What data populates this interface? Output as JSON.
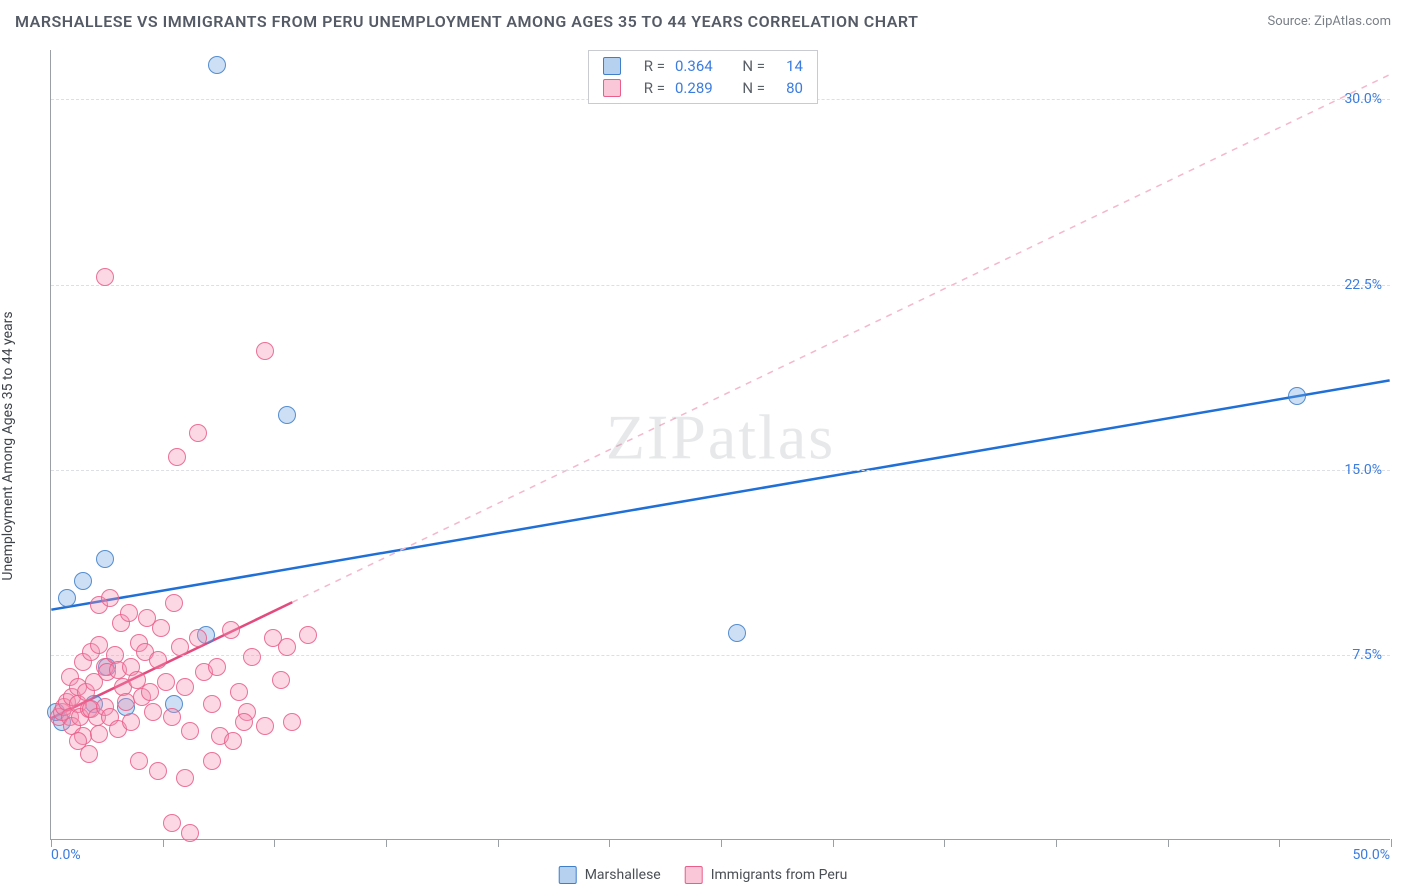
{
  "title": "MARSHALLESE VS IMMIGRANTS FROM PERU UNEMPLOYMENT AMONG AGES 35 TO 44 YEARS CORRELATION CHART",
  "source": "Source: ZipAtlas.com",
  "watermark": "ZIPatlas",
  "y_axis_label": "Unemployment Among Ages 35 to 44 years",
  "chart": {
    "type": "scatter",
    "background_color": "#ffffff",
    "grid_color": "#dcdfe4",
    "axis_color": "#9aa0a6",
    "xlim": [
      0,
      50
    ],
    "ylim": [
      0,
      32
    ],
    "x_min_label": "0.0%",
    "x_max_label": "50.0%",
    "x_tick_positions": [
      0,
      4.17,
      8.33,
      12.5,
      16.67,
      20.83,
      25,
      29.17,
      33.33,
      37.5,
      41.67,
      45.83,
      50
    ],
    "y_ticks": [
      {
        "v": 7.5,
        "label": "7.5%"
      },
      {
        "v": 15.0,
        "label": "15.0%"
      },
      {
        "v": 22.5,
        "label": "22.5%"
      },
      {
        "v": 30.0,
        "label": "30.0%"
      }
    ],
    "series": [
      {
        "name": "Marshallese",
        "color_fill": "rgba(108,163,224,0.35)",
        "color_stroke": "#3f7fc9",
        "trend_solid": {
          "x1": 0,
          "y1": 9.3,
          "x2": 50,
          "y2": 18.6,
          "stroke": "#1f6fd6",
          "width": 2.5
        },
        "trend_dash": null,
        "points": [
          [
            0.4,
            4.8
          ],
          [
            0.6,
            9.8
          ],
          [
            1.2,
            10.5
          ],
          [
            2.0,
            11.4
          ],
          [
            2.1,
            7.0
          ],
          [
            2.8,
            5.4
          ],
          [
            6.2,
            31.4
          ],
          [
            8.8,
            17.2
          ],
          [
            5.8,
            8.3
          ],
          [
            25.6,
            8.4
          ],
          [
            46.5,
            18.0
          ],
          [
            4.6,
            5.5
          ],
          [
            1.6,
            5.5
          ],
          [
            0.2,
            5.2
          ]
        ]
      },
      {
        "name": "Immigrants from Peru",
        "color_fill": "rgba(244,143,177,0.35)",
        "color_stroke": "#e95e8a",
        "trend_solid": {
          "x1": 0,
          "y1": 4.9,
          "x2": 9,
          "y2": 9.6,
          "stroke": "#e34b7e",
          "width": 2.5
        },
        "trend_dash": {
          "x1": 9,
          "y1": 9.6,
          "x2": 50,
          "y2": 31.0,
          "stroke": "#f4b7cd",
          "width": 1.5
        },
        "points": [
          [
            0.3,
            5.0
          ],
          [
            0.4,
            5.2
          ],
          [
            0.5,
            5.4
          ],
          [
            0.6,
            5.6
          ],
          [
            0.7,
            5.0
          ],
          [
            0.7,
            6.6
          ],
          [
            0.8,
            4.6
          ],
          [
            0.8,
            5.8
          ],
          [
            1.0,
            5.5
          ],
          [
            1.0,
            6.2
          ],
          [
            1.1,
            5.0
          ],
          [
            1.2,
            7.2
          ],
          [
            1.2,
            4.2
          ],
          [
            1.3,
            6.0
          ],
          [
            1.4,
            5.3
          ],
          [
            1.5,
            7.6
          ],
          [
            1.5,
            5.3
          ],
          [
            1.6,
            6.4
          ],
          [
            1.7,
            5.0
          ],
          [
            1.8,
            7.9
          ],
          [
            1.8,
            9.5
          ],
          [
            1.8,
            4.3
          ],
          [
            2.0,
            5.4
          ],
          [
            2.0,
            7.0
          ],
          [
            2.1,
            6.8
          ],
          [
            2.2,
            9.8
          ],
          [
            2.2,
            5.0
          ],
          [
            2.4,
            7.5
          ],
          [
            2.5,
            4.5
          ],
          [
            2.5,
            6.9
          ],
          [
            2.6,
            8.8
          ],
          [
            2.7,
            6.2
          ],
          [
            2.8,
            5.6
          ],
          [
            2.9,
            9.2
          ],
          [
            3.0,
            7.0
          ],
          [
            3.0,
            4.8
          ],
          [
            3.2,
            6.5
          ],
          [
            3.3,
            8.0
          ],
          [
            3.4,
            5.8
          ],
          [
            3.5,
            7.6
          ],
          [
            3.6,
            9.0
          ],
          [
            3.7,
            6.0
          ],
          [
            3.8,
            5.2
          ],
          [
            4.0,
            7.3
          ],
          [
            4.1,
            8.6
          ],
          [
            4.3,
            6.4
          ],
          [
            4.5,
            5.0
          ],
          [
            4.6,
            9.6
          ],
          [
            4.8,
            7.8
          ],
          [
            5.0,
            6.2
          ],
          [
            5.2,
            4.4
          ],
          [
            5.5,
            8.2
          ],
          [
            5.7,
            6.8
          ],
          [
            6.0,
            5.5
          ],
          [
            6.2,
            7.0
          ],
          [
            6.3,
            4.2
          ],
          [
            6.7,
            8.5
          ],
          [
            7.0,
            6.0
          ],
          [
            7.3,
            5.2
          ],
          [
            7.5,
            7.4
          ],
          [
            8.0,
            4.6
          ],
          [
            8.3,
            8.2
          ],
          [
            8.6,
            6.5
          ],
          [
            9.0,
            4.8
          ],
          [
            5.0,
            2.5
          ],
          [
            5.2,
            0.3
          ],
          [
            4.0,
            2.8
          ],
          [
            3.3,
            3.2
          ],
          [
            2.0,
            22.8
          ],
          [
            4.7,
            15.5
          ],
          [
            5.5,
            16.5
          ],
          [
            8.0,
            19.8
          ],
          [
            4.5,
            0.7
          ],
          [
            6.0,
            3.2
          ],
          [
            1.0,
            4.0
          ],
          [
            1.4,
            3.5
          ],
          [
            7.2,
            4.8
          ],
          [
            8.8,
            7.8
          ],
          [
            9.6,
            8.3
          ],
          [
            6.8,
            4.0
          ]
        ]
      }
    ]
  },
  "stats_legend": {
    "rows": [
      {
        "swatch": "blue",
        "r_label": "R =",
        "r_val": "0.364",
        "n_label": "N =",
        "n_val": "14"
      },
      {
        "swatch": "pink",
        "r_label": "R =",
        "r_val": "0.289",
        "n_label": "N =",
        "n_val": "80"
      }
    ]
  },
  "bottom_legend": {
    "items": [
      {
        "swatch": "blue",
        "label": "Marshallese"
      },
      {
        "swatch": "pink",
        "label": "Immigrants from Peru"
      }
    ]
  }
}
